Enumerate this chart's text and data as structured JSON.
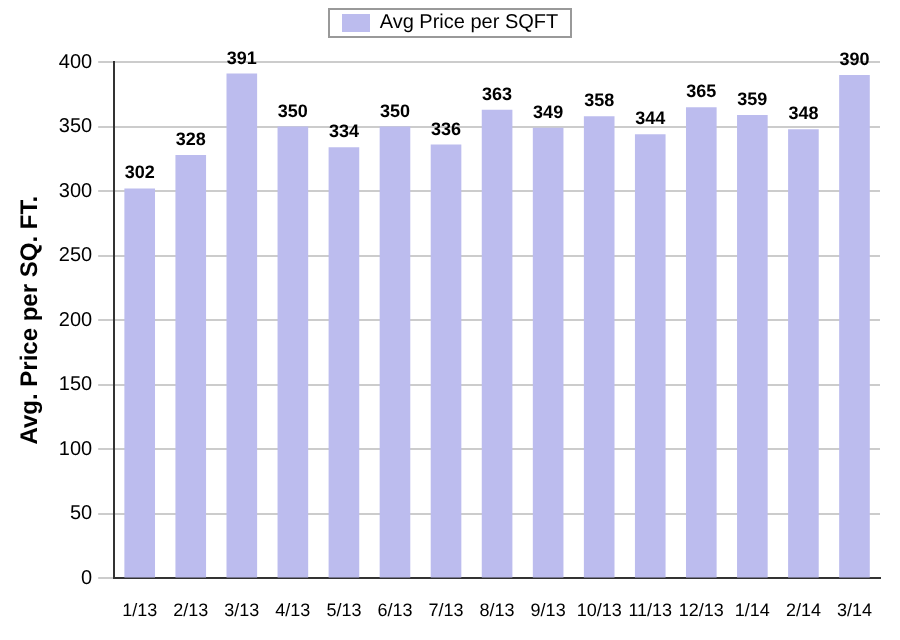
{
  "chart_data": {
    "type": "bar",
    "ylabel": "Avg. Price per SQ. FT.",
    "categories": [
      "1/13",
      "2/13",
      "3/13",
      "4/13",
      "5/13",
      "6/13",
      "7/13",
      "8/13",
      "9/13",
      "10/13",
      "11/13",
      "12/13",
      "1/14",
      "2/14",
      "3/14"
    ],
    "series": [
      {
        "name": "Avg Price per SQFT",
        "color": "#bcbcee",
        "values": [
          302,
          328,
          391,
          350,
          334,
          350,
          336,
          363,
          349,
          358,
          344,
          365,
          359,
          348,
          390
        ]
      }
    ],
    "ylim": [
      0,
      400
    ],
    "yticks": [
      0,
      50,
      100,
      150,
      200,
      250,
      300,
      350,
      400
    ],
    "grid": "y",
    "legend": "top",
    "data_labels": true
  }
}
